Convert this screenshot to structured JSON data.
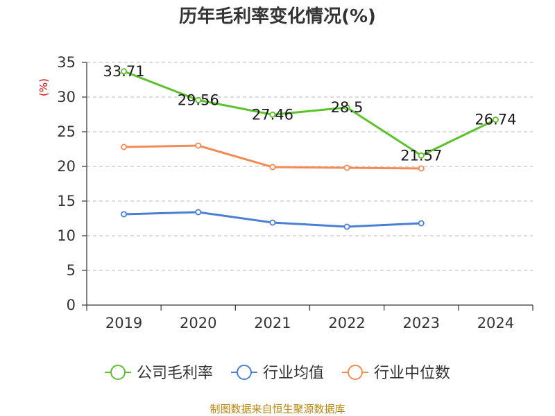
{
  "chart_data": {
    "type": "line",
    "title": "历年毛利率变化情况(%)",
    "unit_label": "(%)",
    "categories": [
      "2019",
      "2020",
      "2021",
      "2022",
      "2023",
      "2024"
    ],
    "ylim": [
      0,
      35
    ],
    "yticks": [
      "0",
      "5",
      "10",
      "15",
      "20",
      "25",
      "30",
      "35"
    ],
    "grid": true,
    "legend_position": "bottom",
    "series": [
      {
        "name": "公司毛利率",
        "color": "#5cc22c",
        "values": [
          33.71,
          29.56,
          27.46,
          28.5,
          21.57,
          26.74
        ],
        "labels": [
          "33.71",
          "29.56",
          "27.46",
          "28.5",
          "21.57",
          "26.74"
        ]
      },
      {
        "name": "行业均值",
        "color": "#4a7fd6",
        "values": [
          13.1,
          13.4,
          11.9,
          11.3,
          11.8,
          null
        ]
      },
      {
        "name": "行业中位数",
        "color": "#f58a55",
        "values": [
          22.8,
          23.0,
          19.9,
          19.8,
          19.7,
          null
        ]
      }
    ],
    "source": "制图数据来自恒生聚源数据库"
  }
}
